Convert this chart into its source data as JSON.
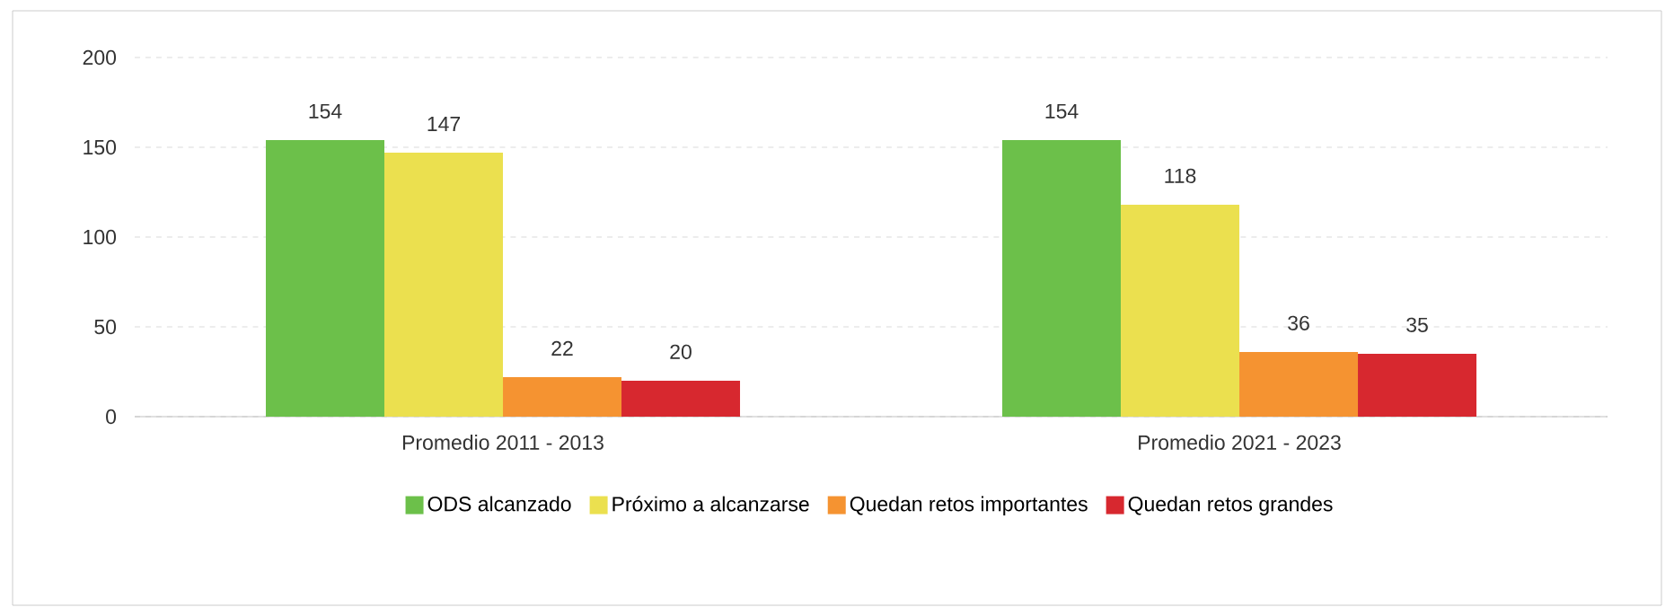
{
  "chart_data": {
    "type": "bar",
    "categories": [
      "Promedio 2011 - 2013",
      "Promedio 2021 - 2023"
    ],
    "series": [
      {
        "name": "ODS alcanzado",
        "color": "#6cc04a",
        "values": [
          154,
          154
        ]
      },
      {
        "name": "Próximo a alcanzarse",
        "color": "#ebe04f",
        "values": [
          147,
          118
        ]
      },
      {
        "name": "Quedan retos importantes",
        "color": "#f59331",
        "values": [
          22,
          36
        ]
      },
      {
        "name": "Quedan retos grandes",
        "color": "#d7282f",
        "values": [
          20,
          35
        ]
      }
    ],
    "ylim": [
      0,
      200
    ],
    "yticks": [
      0,
      50,
      100,
      150,
      200
    ],
    "grid": "y",
    "legend": "bottom",
    "data_labels": true
  }
}
